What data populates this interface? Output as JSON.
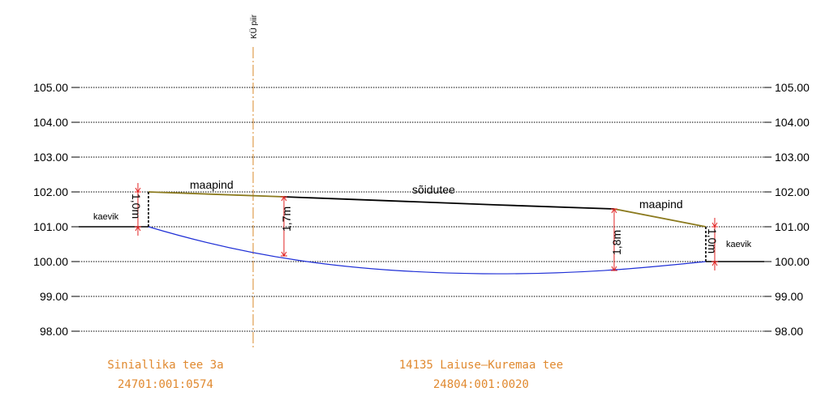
{
  "colors": {
    "ground": "#8b7a1e",
    "road": "#000000",
    "trench_bottom": "#1f2fd6",
    "boundary": "#d98a2b",
    "parcel_text": "#e0892f",
    "dimension": "#e02020",
    "grid": "#000000"
  },
  "axis": {
    "ticks": [
      "105.00",
      "104.00",
      "103.00",
      "102.00",
      "101.00",
      "100.00",
      "99.00",
      "98.00"
    ]
  },
  "labels": {
    "boundary": "KÜ piir",
    "ground_left": "maapind",
    "road": "sõidutee",
    "ground_right": "maapind",
    "trench_left": "kaevik",
    "trench_right": "kaevik",
    "depth_left": "1,0m",
    "depth_mid_left": "1,7m",
    "depth_mid_right": "1,8m",
    "depth_right": "1,0m"
  },
  "parcels": {
    "left_name": "Siniallika tee 3a",
    "left_code": "24701:001:0574",
    "right_name": "14135 Laiuse–Kuremaa tee",
    "right_code": "24804:001:0020"
  }
}
